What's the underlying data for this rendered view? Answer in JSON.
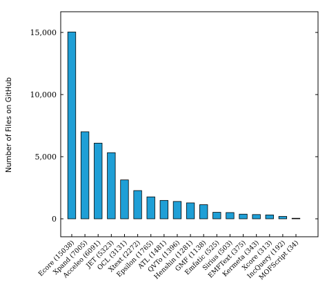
{
  "chart_data": {
    "type": "bar",
    "title": "",
    "xlabel": "",
    "ylabel": "Number of Files on GitHub",
    "ylim": [
      -1300,
      16600
    ],
    "yticks": [
      0,
      5000,
      10000,
      15000
    ],
    "ytick_labels": [
      "0",
      "5,000",
      "10,000",
      "15,000"
    ],
    "grid": false,
    "legend": "none",
    "bar_color": "#1f9fd6",
    "bar_edge_color": "#000000",
    "categories": [
      "Ecore (15038)",
      "Xpand (7005)",
      "Acceleo (6091)",
      "JET (5323)",
      "OCL (3131)",
      "Xtext (2272)",
      "Epsilon (1765)",
      "ATL (1481)",
      "QVTo (1396)",
      "Henshin (1281)",
      "GMF (1138)",
      "Emfatic (525)",
      "Sirius (503)",
      "EMFText (375)",
      "Kermeta (343)",
      "Xcore (313)",
      "IncQuery (192)",
      "MOFScript (34)"
    ],
    "values": [
      15038,
      7005,
      6091,
      5323,
      3131,
      2272,
      1765,
      1481,
      1396,
      1281,
      1138,
      525,
      503,
      375,
      343,
      313,
      192,
      34
    ]
  }
}
